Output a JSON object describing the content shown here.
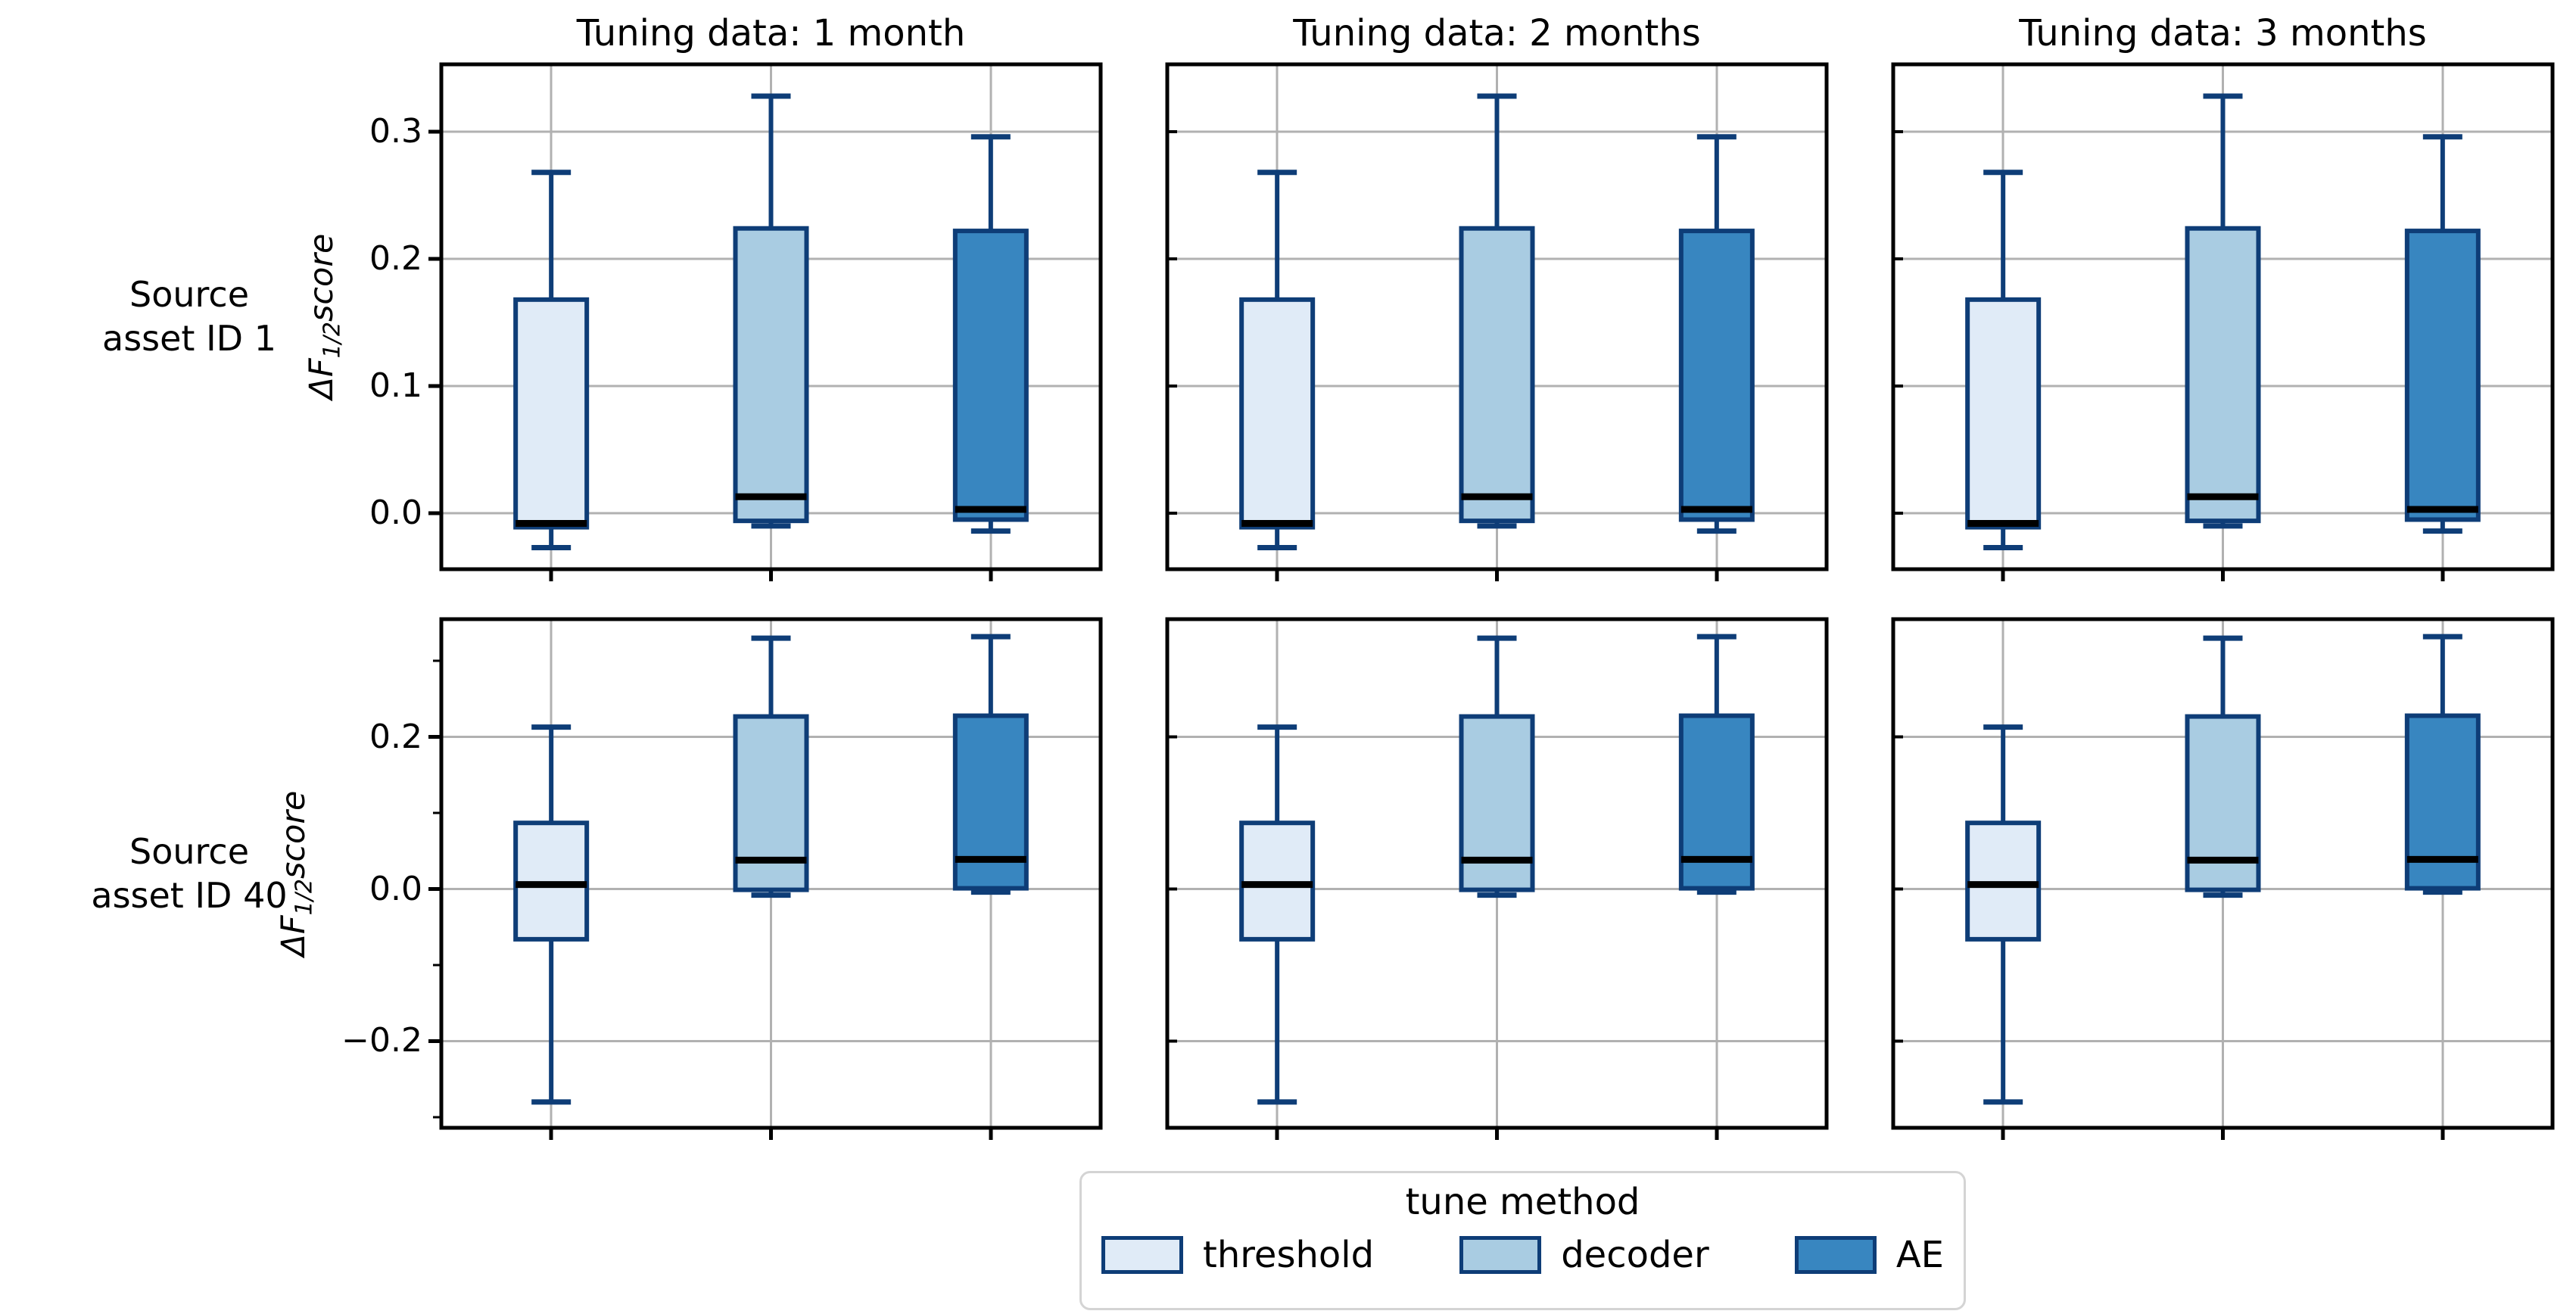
{
  "figure": {
    "background": "#ffffff",
    "column_titles": [
      "Tuning data: 1 month",
      "Tuning data: 2 months",
      "Tuning data: 3 months"
    ],
    "row_labels": [
      {
        "line1": "Source",
        "line2": "asset ID 1"
      },
      {
        "line1": "Source",
        "line2": "asset ID 40"
      }
    ],
    "ylabel": {
      "prefix": "ΔF",
      "sub": "1/2",
      "rest": "score"
    },
    "legend": {
      "title": "tune method",
      "items": [
        {
          "label": "threshold",
          "color": "#e0ebf7"
        },
        {
          "label": "decoder",
          "color": "#a9cce2"
        },
        {
          "label": "AE",
          "color": "#3886c0"
        }
      ]
    },
    "colors": {
      "box_edge": "#0e3d77",
      "median": "#000000",
      "gridline": "#b1b1b1",
      "spine": "#000000",
      "tick": "#000000",
      "legend_border": "#d4d4d4"
    }
  },
  "chart_data": {
    "type": "boxplot",
    "orientation": "vertical",
    "grid": {
      "rows": 2,
      "cols": 3
    },
    "column_titles": [
      "Tuning data: 1 month",
      "Tuning data: 2 months",
      "Tuning data: 3 months"
    ],
    "methods": [
      "threshold",
      "decoder",
      "AE"
    ],
    "legend_title": "tune method",
    "ylabel": "ΔF_{1/2} score",
    "grid_on": true,
    "rows": [
      {
        "row_label": "Source asset ID 1",
        "ylim": [
          -0.044,
          0.353
        ],
        "yticks": [
          {
            "value": 0.3,
            "label": "0.3"
          },
          {
            "value": 0.2,
            "label": "0.2"
          },
          {
            "value": 0.1,
            "label": "0.1"
          },
          {
            "value": 0.0,
            "label": "0.0"
          }
        ],
        "yticks_minor": [],
        "subplots": [
          {
            "tuning": "1 month",
            "boxes": [
              {
                "method": "threshold",
                "whislo": -0.027,
                "q1": -0.011,
                "med": -0.008,
                "q3": 0.168,
                "whishi": 0.268
              },
              {
                "method": "decoder",
                "whislo": -0.01,
                "q1": -0.006,
                "med": 0.013,
                "q3": 0.224,
                "whishi": 0.328
              },
              {
                "method": "AE",
                "whislo": -0.014,
                "q1": -0.005,
                "med": 0.003,
                "q3": 0.222,
                "whishi": 0.296
              }
            ]
          },
          {
            "tuning": "2 months",
            "boxes": [
              {
                "method": "threshold",
                "whislo": -0.027,
                "q1": -0.011,
                "med": -0.008,
                "q3": 0.168,
                "whishi": 0.268
              },
              {
                "method": "decoder",
                "whislo": -0.01,
                "q1": -0.006,
                "med": 0.013,
                "q3": 0.224,
                "whishi": 0.328
              },
              {
                "method": "AE",
                "whislo": -0.014,
                "q1": -0.005,
                "med": 0.003,
                "q3": 0.222,
                "whishi": 0.296
              }
            ]
          },
          {
            "tuning": "3 months",
            "boxes": [
              {
                "method": "threshold",
                "whislo": -0.027,
                "q1": -0.011,
                "med": -0.008,
                "q3": 0.168,
                "whishi": 0.268
              },
              {
                "method": "decoder",
                "whislo": -0.01,
                "q1": -0.006,
                "med": 0.013,
                "q3": 0.224,
                "whishi": 0.328
              },
              {
                "method": "AE",
                "whislo": -0.014,
                "q1": -0.005,
                "med": 0.003,
                "q3": 0.222,
                "whishi": 0.296
              }
            ]
          }
        ]
      },
      {
        "row_label": "Source asset ID 40",
        "ylim": [
          -0.314,
          0.355
        ],
        "yticks": [
          {
            "value": 0.2,
            "label": "0.2"
          },
          {
            "value": 0.0,
            "label": "0.0"
          },
          {
            "value": -0.2,
            "label": "−0.2"
          }
        ],
        "yticks_minor": [
          0.3,
          0.1,
          -0.1,
          -0.3
        ],
        "subplots": [
          {
            "tuning": "1 month",
            "boxes": [
              {
                "method": "threshold",
                "whislo": -0.28,
                "q1": -0.066,
                "med": 0.006,
                "q3": 0.087,
                "whishi": 0.213
              },
              {
                "method": "decoder",
                "whislo": -0.008,
                "q1": -0.001,
                "med": 0.038,
                "q3": 0.227,
                "whishi": 0.33
              },
              {
                "method": "AE",
                "whislo": -0.004,
                "q1": 0.001,
                "med": 0.039,
                "q3": 0.228,
                "whishi": 0.332
              }
            ]
          },
          {
            "tuning": "2 months",
            "boxes": [
              {
                "method": "threshold",
                "whislo": -0.28,
                "q1": -0.066,
                "med": 0.006,
                "q3": 0.087,
                "whishi": 0.213
              },
              {
                "method": "decoder",
                "whislo": -0.008,
                "q1": -0.001,
                "med": 0.038,
                "q3": 0.227,
                "whishi": 0.33
              },
              {
                "method": "AE",
                "whislo": -0.004,
                "q1": 0.001,
                "med": 0.039,
                "q3": 0.228,
                "whishi": 0.332
              }
            ]
          },
          {
            "tuning": "3 months",
            "boxes": [
              {
                "method": "threshold",
                "whislo": -0.28,
                "q1": -0.066,
                "med": 0.006,
                "q3": 0.087,
                "whishi": 0.213
              },
              {
                "method": "decoder",
                "whislo": -0.008,
                "q1": -0.001,
                "med": 0.038,
                "q3": 0.227,
                "whishi": 0.33
              },
              {
                "method": "AE",
                "whislo": -0.004,
                "q1": 0.001,
                "med": 0.039,
                "q3": 0.228,
                "whishi": 0.332
              }
            ]
          }
        ]
      }
    ]
  }
}
